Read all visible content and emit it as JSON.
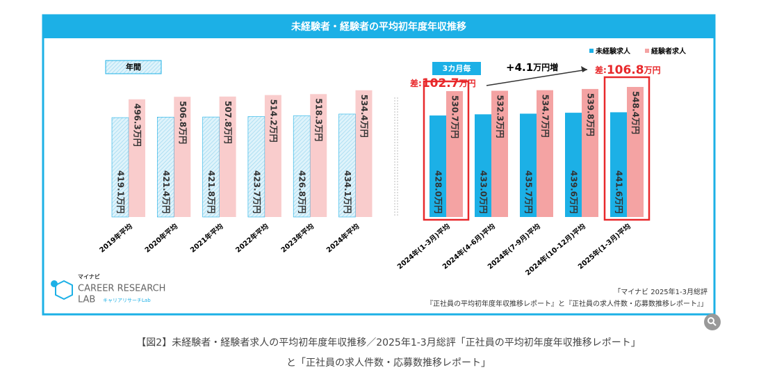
{
  "chart_data": {
    "type": "bar",
    "title": "未経験者・経験者の平均初年度年収推移",
    "categories": [
      "2019年平均",
      "2020年平均",
      "2021年平均",
      "2022年平均",
      "2023年平均",
      "2024年平均",
      "2024年(1-3月)平均",
      "2024年(4-6月)平均",
      "2024年(7-9月)平均",
      "2024年(10-12月)平均",
      "2025年(1-3月)平均"
    ],
    "series": [
      {
        "name": "未経験求人",
        "color": "#1cb0e6",
        "values": [
          419.1,
          421.4,
          421.8,
          423.7,
          426.8,
          434.1,
          428.0,
          433.0,
          435.7,
          439.6,
          441.6
        ],
        "value_labels": [
          "419.1万円",
          "421.4万円",
          "421.8万円",
          "423.7万円",
          "426.8万円",
          "434.1万円",
          "428.0万円",
          "433.0万円",
          "435.7万円",
          "439.6万円",
          "441.6万円"
        ]
      },
      {
        "name": "経験者求人",
        "color": "#f4a3a3",
        "values": [
          496.3,
          506.8,
          507.8,
          514.2,
          518.3,
          534.4,
          530.7,
          532.3,
          534.7,
          539.8,
          548.4
        ],
        "value_labels": [
          "496.3万円",
          "506.8万円",
          "507.8万円",
          "514.2万円",
          "518.3万円",
          "534.4万円",
          "530.7万円",
          "532.3万円",
          "534.7万円",
          "539.8万円",
          "548.4万円"
        ]
      }
    ],
    "group_labels": [
      "年間",
      "3カ月毎"
    ],
    "annotations": {
      "increase": [
        "+4.1",
        "万円増"
      ],
      "diff_first": [
        "差:",
        "102.7",
        "万円"
      ],
      "diff_last": [
        "差:",
        "106.8",
        "万円"
      ]
    },
    "logo": {
      "brand": "マイナビ",
      "line1": "CAREER RESEARCH",
      "line2": "LAB",
      "sub": "キャリアリサーチLab"
    },
    "source": [
      "「マイナビ 2025年1-3月総評",
      "『正社員の平均初年度年収推移レポート』と『正社員の求人件数・応募数推移レポート』」"
    ],
    "caption": [
      "【図2】未経験者・経験者求人の平均初年度年収推移／2025年1-3月総評「正社員の平均初年度年収推移レポート」",
      "と「正社員の求人件数・応募数推移レポート」"
    ]
  }
}
